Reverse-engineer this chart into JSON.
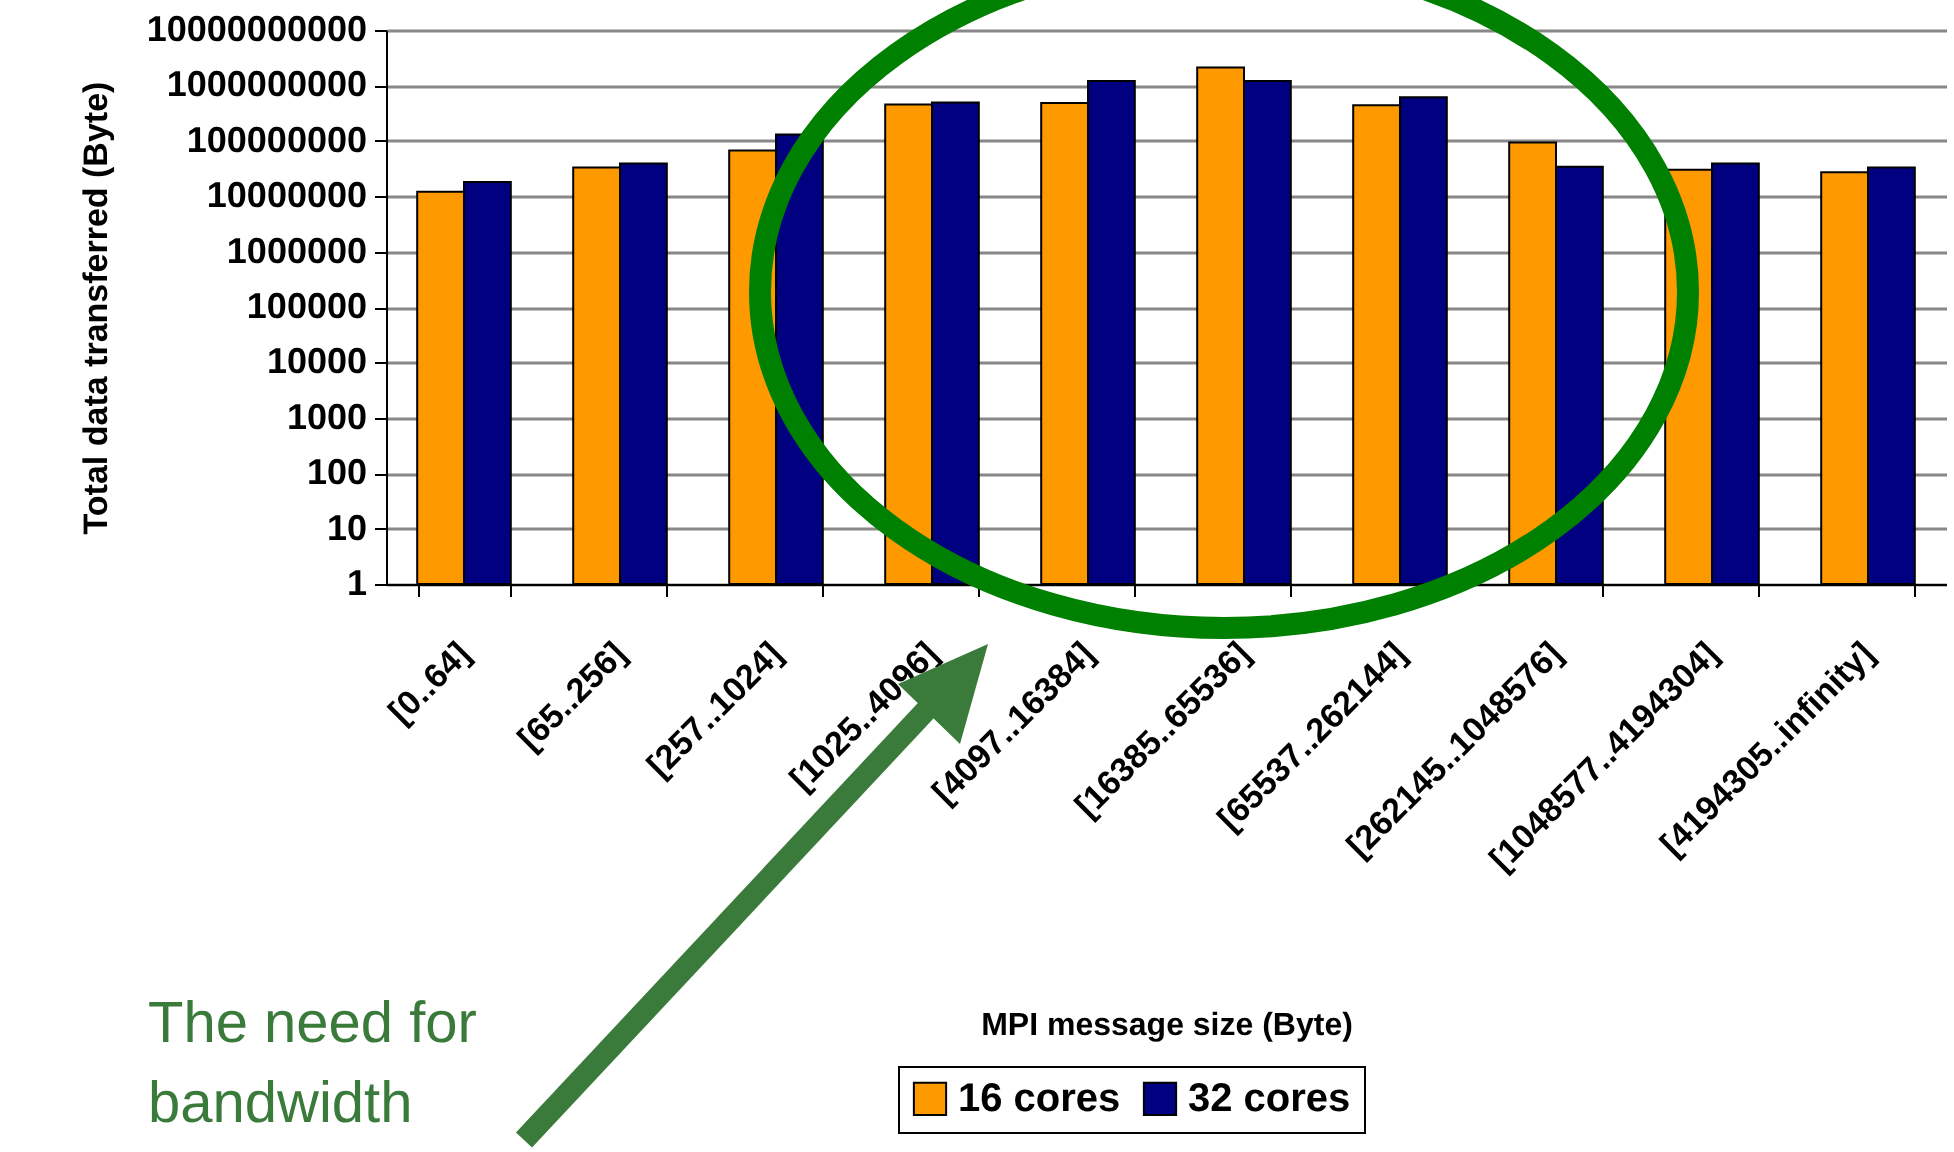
{
  "chart_data": {
    "type": "bar",
    "xlabel": "MPI message size (Byte)",
    "ylabel": "Total data transferred (Byte)",
    "categories": [
      "[0..64]",
      "[65..256]",
      "[257..1024]",
      "[1025..4096]",
      "[4097..16384]",
      "[16385..65536]",
      "[65537..262144]",
      "[262145..1048576]",
      "[1048577..4194304]",
      "[4194305..infinity]"
    ],
    "series": [
      {
        "name": "16 cores",
        "color": "#ff9900",
        "values": [
          12000000,
          33000000,
          67000000,
          450000000,
          480000000,
          2100000000,
          440000000,
          93000000,
          30000000,
          27000000
        ]
      },
      {
        "name": "32 cores",
        "color": "#000080",
        "values": [
          18000000,
          39000000,
          130000000,
          490000000,
          1200000000,
          1200000000,
          610000000,
          34000000,
          39000000,
          33000000
        ]
      }
    ],
    "log": "y",
    "ylim": [
      1,
      10000000000
    ],
    "yticks": [
      1,
      10,
      100,
      1000,
      10000,
      100000,
      1000000,
      10000000,
      100000000,
      1000000000,
      10000000000
    ],
    "grid": "y",
    "legend": "bottom",
    "annotations": [
      "The need for bandwidth"
    ]
  }
}
